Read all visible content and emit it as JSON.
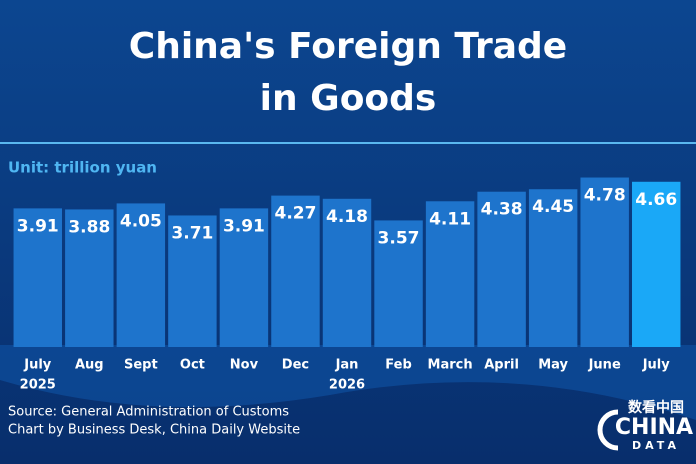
{
  "chart_data": {
    "type": "bar",
    "title_lines": [
      "China's Foreign Trade",
      "in Goods"
    ],
    "unit": "Unit: trillion yuan",
    "categories": [
      "July",
      "Aug",
      "Sept",
      "Oct",
      "Nov",
      "Dec",
      "Jan",
      "Feb",
      "March",
      "April",
      "May",
      "June",
      "July"
    ],
    "category_years": [
      "2025",
      null,
      null,
      null,
      null,
      null,
      "2026",
      null,
      null,
      null,
      null,
      null,
      null
    ],
    "values": [
      3.91,
      3.88,
      4.05,
      3.71,
      3.91,
      4.27,
      4.18,
      3.57,
      4.11,
      4.38,
      4.45,
      4.78,
      4.66
    ],
    "colors": [
      "#1e74cc",
      "#1e74cc",
      "#1e74cc",
      "#1e74cc",
      "#1e74cc",
      "#1e74cc",
      "#1e74cc",
      "#1e74cc",
      "#1e74cc",
      "#1e74cc",
      "#1e74cc",
      "#1e74cc",
      "#1aa8f7"
    ],
    "ylim": [
      0,
      5.5
    ],
    "source": "Source: General Administration of Customs",
    "credit": "Chart by Business Desk, China Daily Website",
    "logo": {
      "top": "数看中国",
      "middle": "CHINA",
      "bottom": "DATA"
    }
  }
}
